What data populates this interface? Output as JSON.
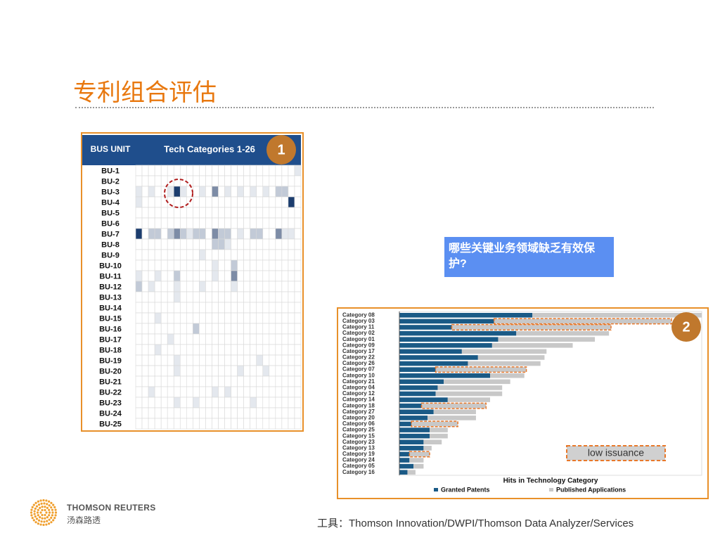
{
  "title": "专利组合评估",
  "callout": "哪些关键业务领域缺乏有效保护?",
  "badges": [
    "1",
    "2"
  ],
  "logo": {
    "name": "THOMSON REUTERS",
    "local_name": "汤森路透"
  },
  "source": "工具：Thomson Innovation/DWPI/Thomson Data Analyzer/Services",
  "chart_data": [
    {
      "type": "heatmap",
      "row_header": "BUS UNIT",
      "col_header": "Tech Categories 1-26",
      "rows": [
        "BU-1",
        "BU-2",
        "BU-3",
        "BU-4",
        "BU-5",
        "BU-6",
        "BU-7",
        "BU-8",
        "BU-9",
        "BU-10",
        "BU-11",
        "BU-12",
        "BU-13",
        "BU-14",
        "BU-15",
        "BU-16",
        "BU-17",
        "BU-18",
        "BU-19",
        "BU-20",
        "BU-21",
        "BU-22",
        "BU-23",
        "BU-24",
        "BU-25"
      ],
      "colors": [
        "#ffffff",
        "#e4e8ee",
        "#c2cad7",
        "#7d8ca6",
        "#1c3d6e"
      ],
      "header_color": "#1f4e8c",
      "values": [
        [
          0,
          0,
          0,
          0,
          0,
          0,
          0,
          0,
          0,
          0,
          0,
          0,
          0,
          0,
          0,
          0,
          0,
          0,
          0,
          0,
          0,
          0,
          0,
          0,
          0,
          1
        ],
        [
          0,
          0,
          0,
          0,
          0,
          0,
          0,
          0,
          0,
          0,
          0,
          0,
          0,
          0,
          0,
          0,
          0,
          0,
          0,
          0,
          0,
          0,
          0,
          0,
          0,
          0
        ],
        [
          1,
          0,
          1,
          0,
          0,
          1,
          4,
          1,
          0,
          0,
          1,
          0,
          3,
          0,
          1,
          0,
          1,
          0,
          1,
          0,
          1,
          0,
          2,
          2,
          0,
          0
        ],
        [
          1,
          0,
          0,
          0,
          0,
          0,
          0,
          0,
          0,
          0,
          0,
          0,
          0,
          0,
          0,
          0,
          0,
          0,
          0,
          0,
          0,
          0,
          0,
          0,
          4,
          0
        ],
        [
          0,
          0,
          0,
          0,
          0,
          0,
          0,
          0,
          0,
          0,
          0,
          0,
          0,
          0,
          0,
          0,
          0,
          0,
          0,
          0,
          0,
          0,
          0,
          0,
          0,
          0
        ],
        [
          0,
          0,
          0,
          0,
          0,
          0,
          0,
          0,
          0,
          0,
          0,
          0,
          0,
          0,
          0,
          0,
          0,
          0,
          0,
          0,
          0,
          0,
          0,
          0,
          0,
          0
        ],
        [
          4,
          0,
          2,
          2,
          0,
          2,
          3,
          2,
          1,
          2,
          2,
          0,
          3,
          2,
          2,
          0,
          1,
          0,
          2,
          2,
          0,
          0,
          3,
          1,
          1,
          0
        ],
        [
          0,
          0,
          0,
          0,
          0,
          0,
          0,
          0,
          0,
          0,
          0,
          0,
          2,
          2,
          1,
          0,
          0,
          0,
          0,
          0,
          0,
          0,
          0,
          0,
          0,
          0
        ],
        [
          0,
          0,
          0,
          0,
          0,
          0,
          0,
          0,
          0,
          0,
          1,
          0,
          0,
          0,
          0,
          0,
          0,
          0,
          0,
          0,
          0,
          0,
          0,
          0,
          0,
          0
        ],
        [
          0,
          0,
          0,
          0,
          0,
          0,
          0,
          0,
          0,
          0,
          0,
          0,
          1,
          0,
          0,
          2,
          0,
          0,
          0,
          0,
          0,
          0,
          0,
          0,
          0,
          0
        ],
        [
          1,
          0,
          0,
          1,
          0,
          0,
          2,
          0,
          0,
          0,
          0,
          0,
          1,
          0,
          0,
          3,
          0,
          0,
          0,
          0,
          0,
          0,
          0,
          0,
          0,
          0
        ],
        [
          2,
          0,
          1,
          0,
          0,
          0,
          1,
          0,
          0,
          0,
          1,
          0,
          0,
          0,
          0,
          1,
          0,
          0,
          0,
          0,
          0,
          0,
          0,
          0,
          0,
          0
        ],
        [
          0,
          0,
          0,
          0,
          0,
          0,
          1,
          0,
          0,
          0,
          0,
          0,
          0,
          0,
          0,
          0,
          0,
          0,
          0,
          0,
          0,
          0,
          0,
          0,
          0,
          0
        ],
        [
          0,
          0,
          0,
          0,
          0,
          0,
          0,
          0,
          0,
          0,
          0,
          0,
          0,
          0,
          0,
          0,
          0,
          0,
          0,
          0,
          0,
          0,
          0,
          0,
          0,
          0
        ],
        [
          0,
          0,
          0,
          1,
          0,
          0,
          0,
          0,
          0,
          0,
          0,
          0,
          0,
          0,
          0,
          0,
          0,
          0,
          0,
          0,
          0,
          0,
          0,
          0,
          0,
          0
        ],
        [
          0,
          0,
          0,
          0,
          0,
          0,
          0,
          0,
          0,
          2,
          0,
          0,
          0,
          0,
          0,
          0,
          0,
          0,
          0,
          0,
          0,
          0,
          0,
          0,
          0,
          0
        ],
        [
          0,
          0,
          0,
          0,
          0,
          1,
          0,
          0,
          0,
          0,
          0,
          0,
          0,
          0,
          0,
          0,
          0,
          0,
          0,
          0,
          0,
          0,
          0,
          0,
          0,
          0
        ],
        [
          0,
          0,
          0,
          1,
          0,
          0,
          0,
          0,
          0,
          0,
          0,
          0,
          0,
          0,
          0,
          0,
          0,
          0,
          0,
          0,
          0,
          0,
          0,
          0,
          0,
          0
        ],
        [
          0,
          0,
          0,
          0,
          0,
          0,
          1,
          0,
          0,
          0,
          0,
          0,
          0,
          0,
          0,
          0,
          0,
          0,
          0,
          1,
          0,
          0,
          0,
          0,
          0,
          0
        ],
        [
          0,
          0,
          0,
          0,
          0,
          0,
          1,
          0,
          0,
          0,
          0,
          0,
          0,
          0,
          0,
          0,
          1,
          0,
          0,
          0,
          1,
          0,
          0,
          0,
          0,
          0
        ],
        [
          0,
          0,
          0,
          0,
          0,
          0,
          0,
          0,
          0,
          0,
          0,
          0,
          0,
          0,
          0,
          0,
          0,
          0,
          0,
          0,
          0,
          0,
          0,
          0,
          0,
          0
        ],
        [
          0,
          0,
          1,
          0,
          0,
          0,
          0,
          0,
          0,
          0,
          0,
          0,
          1,
          0,
          1,
          0,
          0,
          0,
          0,
          0,
          0,
          0,
          0,
          0,
          0,
          0
        ],
        [
          0,
          0,
          0,
          0,
          0,
          0,
          1,
          0,
          0,
          1,
          0,
          0,
          0,
          0,
          0,
          0,
          0,
          0,
          1,
          0,
          0,
          0,
          0,
          0,
          0,
          0
        ],
        [
          0,
          0,
          0,
          0,
          0,
          0,
          0,
          0,
          0,
          0,
          0,
          0,
          0,
          0,
          0,
          0,
          0,
          0,
          0,
          0,
          0,
          0,
          0,
          0,
          0,
          0
        ],
        [
          0,
          0,
          0,
          0,
          0,
          0,
          0,
          0,
          0,
          0,
          0,
          0,
          0,
          0,
          0,
          0,
          0,
          0,
          0,
          0,
          0,
          0,
          0,
          0,
          0,
          0
        ]
      ]
    },
    {
      "type": "stacked-bar",
      "orientation": "horizontal",
      "categories": [
        "Category 08",
        "Category 03",
        "Category 11",
        "Category 02",
        "Category 01",
        "Category 09",
        "Category 17",
        "Category 22",
        "Category 26",
        "Category 07",
        "Category 10",
        "Category 21",
        "Category 04",
        "Category 12",
        "Category 14",
        "Category 18",
        "Category 27",
        "Category 20",
        "Category 06",
        "Category 25",
        "Category 15",
        "Category 23",
        "Category 13",
        "Category 19",
        "Category 24",
        "Category 05",
        "Category 16"
      ],
      "series": [
        {
          "name": "Granted Patents",
          "color": "#1a5a86",
          "values": [
            66,
            47,
            26,
            58,
            49,
            46,
            31,
            39,
            34,
            18,
            45,
            22,
            19,
            18,
            24,
            11,
            17,
            14,
            6,
            15,
            15,
            12,
            12,
            5,
            5,
            7,
            4
          ]
        },
        {
          "name": "Published Applications",
          "color": "#c8c8c8",
          "values": [
            84,
            88,
            79,
            46,
            48,
            40,
            42,
            33,
            36,
            45,
            17,
            33,
            32,
            33,
            21,
            32,
            21,
            24,
            23,
            9,
            9,
            9,
            4,
            10,
            7,
            5,
            4
          ]
        }
      ],
      "highlighted": [
        false,
        true,
        true,
        false,
        false,
        false,
        false,
        false,
        false,
        true,
        false,
        false,
        false,
        false,
        false,
        true,
        false,
        false,
        true,
        false,
        false,
        false,
        false,
        true,
        false,
        false,
        false
      ],
      "highlight_color": "#e8782a",
      "xlim": [
        0,
        150
      ],
      "xlabel": "Hits in Technology Category",
      "annotation": "low issuance"
    }
  ]
}
